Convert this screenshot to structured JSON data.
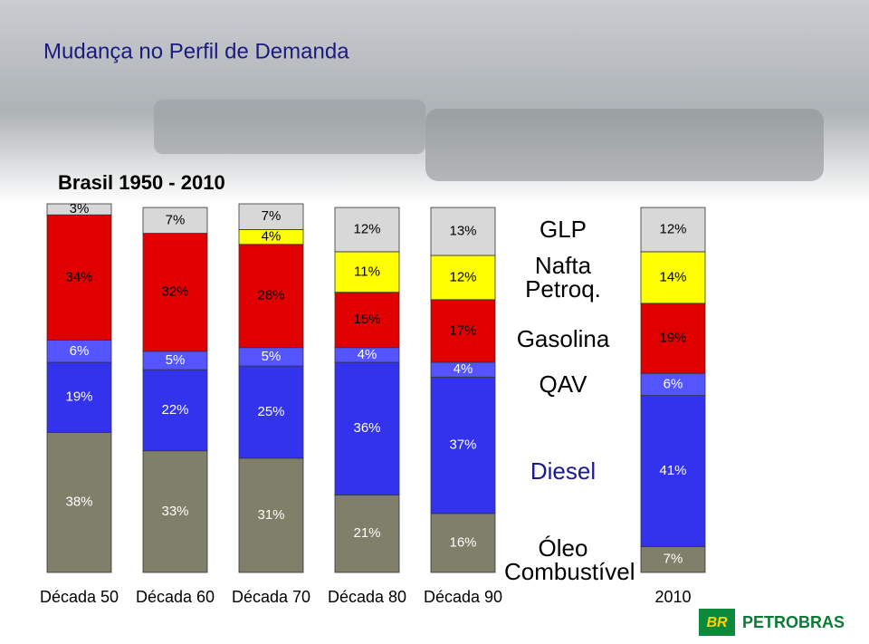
{
  "chart_data": {
    "type": "stacked-bar",
    "title": "Mudança no Perfil de Demanda",
    "subtitle": "Brasil 1950 - 2010",
    "logo": {
      "mark": "BR",
      "text": "PETROBRAS"
    },
    "categories": [
      "Década 50",
      "Década 60",
      "Década 70",
      "Década 80",
      "Década 90",
      "2010"
    ],
    "ylim": [
      0,
      100
    ],
    "series": [
      {
        "name": "Óleo Combustível",
        "color": "#7f7f6a",
        "values": [
          38,
          33,
          31,
          21,
          16,
          7
        ],
        "value_labels": [
          "38%",
          "33%",
          "31%",
          "21%",
          "16%",
          "7%"
        ]
      },
      {
        "name": "Diesel",
        "color": "#3333ee",
        "values": [
          19,
          22,
          25,
          36,
          37,
          41
        ],
        "value_labels": [
          "19%",
          "22%",
          "25%",
          "36%",
          "37%",
          "41%"
        ]
      },
      {
        "name": "QAV",
        "color": "#5555ff",
        "values": [
          6,
          5,
          5,
          4,
          4,
          6
        ],
        "value_labels": [
          "6%",
          "5%",
          "5%",
          "4%",
          "4%",
          "6%"
        ]
      },
      {
        "name": "Gasolina",
        "color": "#e00000",
        "values": [
          34,
          32,
          28,
          15,
          17,
          19
        ],
        "value_labels": [
          "34%",
          "32%",
          "28%",
          "15%",
          "17%",
          "19%"
        ]
      },
      {
        "name": "Nafta Petroq.",
        "color": "#ffff00",
        "values": [
          null,
          null,
          4,
          11,
          12,
          14
        ],
        "value_labels": [
          null,
          null,
          "4%",
          "11%",
          "12%",
          "14%"
        ]
      },
      {
        "name": "GLP",
        "color": "#d8d8d8",
        "values": [
          3,
          7,
          7,
          12,
          13,
          12
        ],
        "value_labels": [
          "3%",
          "7%",
          "7%",
          "12%",
          "13%",
          "12%"
        ]
      }
    ]
  }
}
